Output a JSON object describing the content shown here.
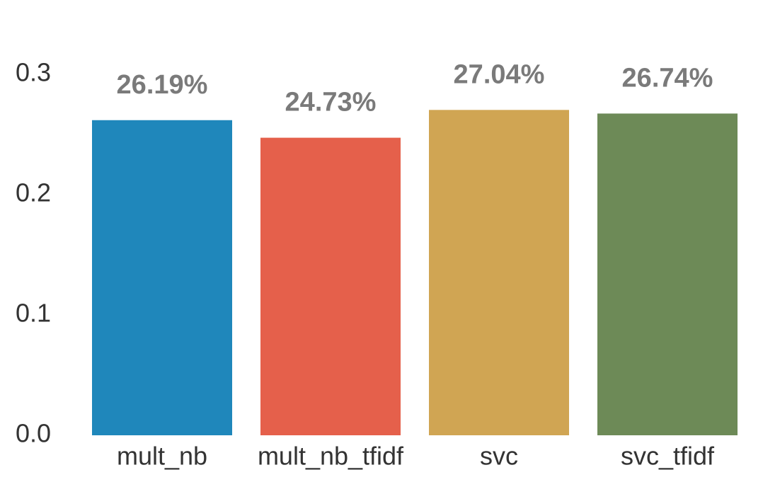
{
  "chart_data": {
    "type": "bar",
    "title": "",
    "xlabel": "",
    "ylabel": "",
    "categories": [
      "mult_nb",
      "mult_nb_tfidf",
      "svc",
      "svc_tfidf"
    ],
    "values": [
      0.2619,
      0.2473,
      0.2704,
      0.2674
    ],
    "data_labels": [
      "26.19%",
      "24.73%",
      "27.04%",
      "26.74%"
    ],
    "bar_colors": [
      "#1f87bb",
      "#e5604b",
      "#d0a553",
      "#6d8a57"
    ],
    "yticks": [
      0.0,
      0.1,
      0.2,
      0.3
    ],
    "ytick_labels": [
      "0.0",
      "0.1",
      "0.2",
      "0.3"
    ],
    "ylim": [
      0,
      0.3
    ],
    "grid": false,
    "legend": "none",
    "data_label_color": "#7a7a7a",
    "tick_label_color": "#333333"
  }
}
